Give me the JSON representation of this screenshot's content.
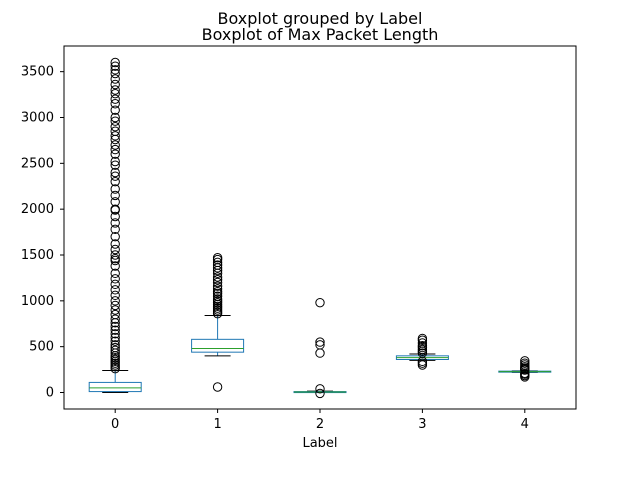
{
  "figure": {
    "suptitle": "Boxplot grouped by Label"
  },
  "chart_data": {
    "type": "box",
    "title": "Boxplot of Max Packet Length",
    "xlabel": "Label",
    "ylabel": "",
    "categories": [
      "0",
      "1",
      "2",
      "3",
      "4"
    ],
    "ylim": [
      -180,
      3780
    ],
    "yticks": [
      0,
      500,
      1000,
      1500,
      2000,
      2500,
      3000,
      3500
    ],
    "grid": false,
    "colors": {
      "box": "#1f77b4",
      "median": "#2ca02c",
      "whisker": "#1f77b4",
      "cap": "#000000",
      "flier": "#000000",
      "axes": "#000000",
      "background": "#ffffff"
    },
    "boxes": [
      {
        "label": "0",
        "whislo": 0,
        "q1": 10,
        "med": 50,
        "q3": 110,
        "whishi": 240,
        "fliers": [
          260,
          280,
          300,
          320,
          340,
          360,
          380,
          400,
          430,
          460,
          490,
          520,
          560,
          600,
          640,
          680,
          720,
          760,
          800,
          850,
          900,
          950,
          1000,
          1060,
          1120,
          1180,
          1240,
          1300,
          1380,
          1440,
          1460,
          1500,
          1560,
          1620,
          1700,
          1780,
          1850,
          1920,
          1990,
          2000,
          2080,
          2150,
          2220,
          2300,
          2360,
          2400,
          2480,
          2520,
          2600,
          2650,
          2700,
          2760,
          2800,
          2850,
          2900,
          2960,
          3000,
          3080,
          3150,
          3200,
          3260,
          3300,
          3360,
          3420,
          3480,
          3520,
          3560,
          3600
        ]
      },
      {
        "label": "1",
        "whislo": 400,
        "q1": 440,
        "med": 480,
        "q3": 580,
        "whishi": 840,
        "fliers": [
          60,
          860,
          880,
          900,
          920,
          940,
          960,
          980,
          1000,
          1020,
          1050,
          1080,
          1100,
          1130,
          1160,
          1200,
          1230,
          1260,
          1300,
          1330,
          1360,
          1390,
          1420,
          1450,
          1470
        ]
      },
      {
        "label": "2",
        "whislo": 0,
        "q1": 0,
        "med": 5,
        "q3": 10,
        "whishi": 15,
        "fliers": [
          -10,
          40,
          430,
          520,
          550,
          980
        ]
      },
      {
        "label": "3",
        "whislo": 350,
        "q1": 360,
        "med": 380,
        "q3": 400,
        "whishi": 420,
        "fliers": [
          300,
          320,
          340,
          430,
          450,
          470,
          490,
          510,
          540,
          570,
          590
        ]
      },
      {
        "label": "4",
        "whislo": 220,
        "q1": 222,
        "med": 228,
        "q3": 233,
        "whishi": 236,
        "fliers": [
          170,
          185,
          200,
          210,
          245,
          255,
          265,
          280,
          300,
          320,
          345
        ]
      }
    ]
  }
}
